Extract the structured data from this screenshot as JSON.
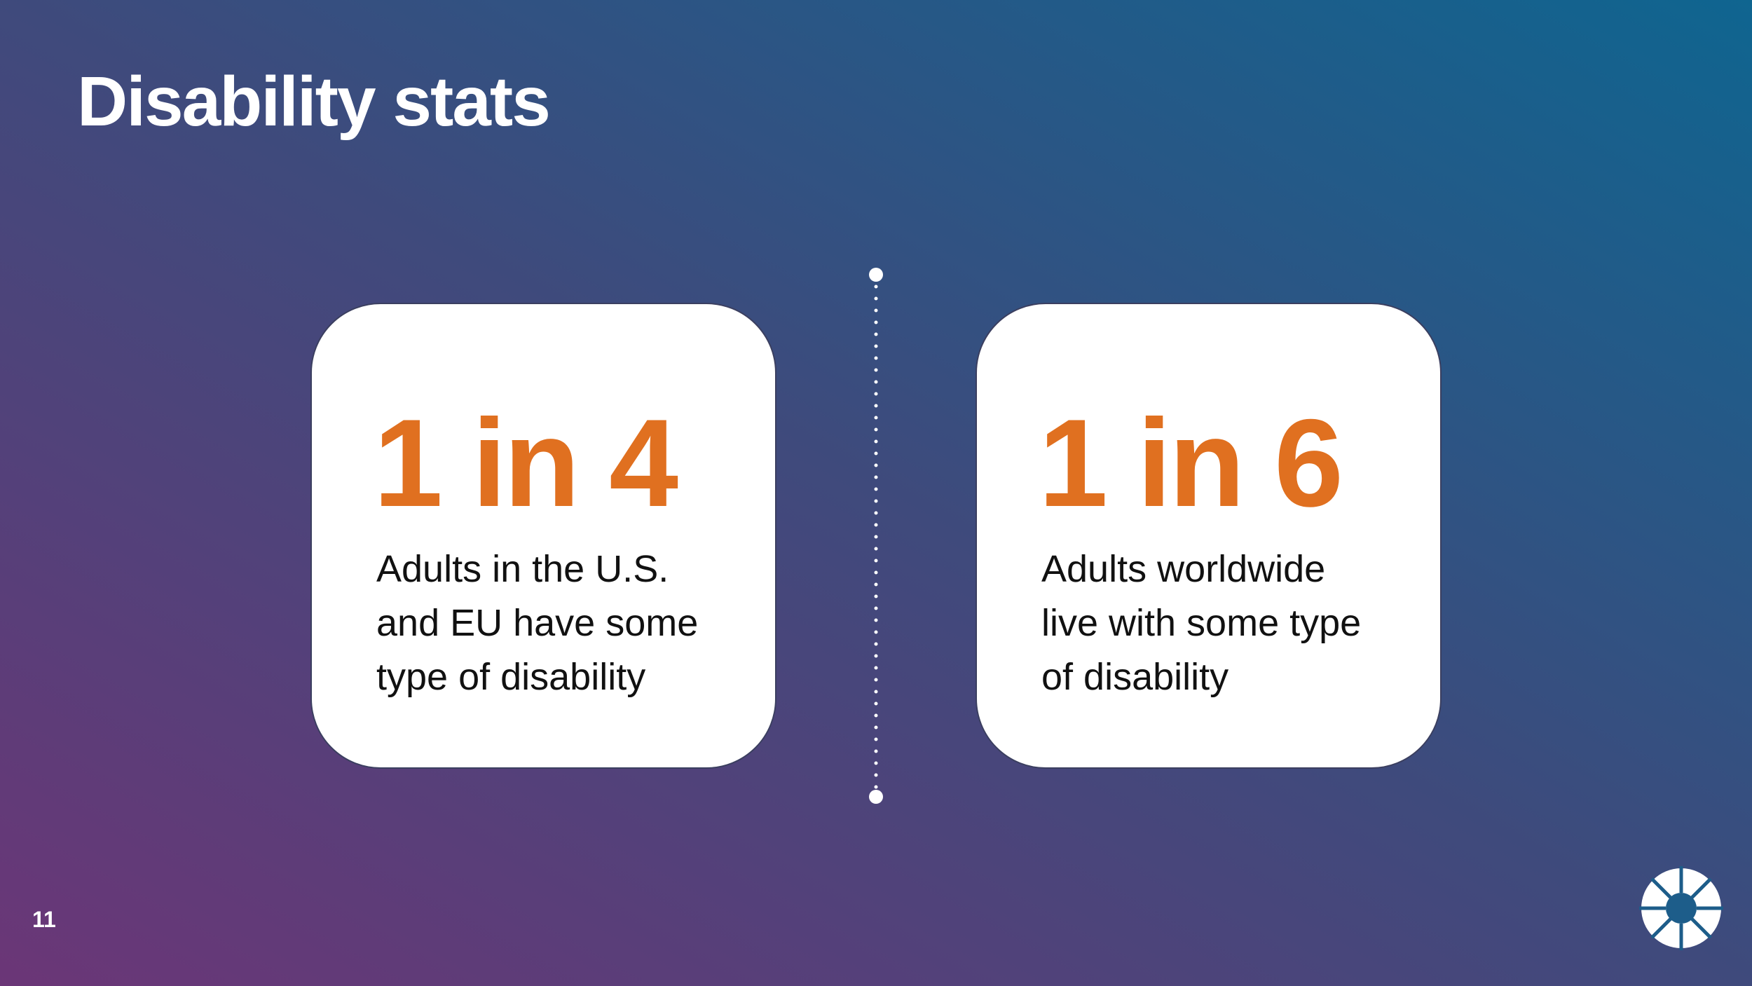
{
  "header": {
    "title": "Disability stats"
  },
  "cards": [
    {
      "stat": "1 in 4",
      "description": [
        "Adults in the U.S.",
        "and EU have some",
        "type of disability"
      ]
    },
    {
      "stat": "1 in 6",
      "description": [
        "Adults worldwide",
        "live with some type",
        "of disability"
      ]
    }
  ],
  "footer": {
    "page_number": "11"
  }
}
